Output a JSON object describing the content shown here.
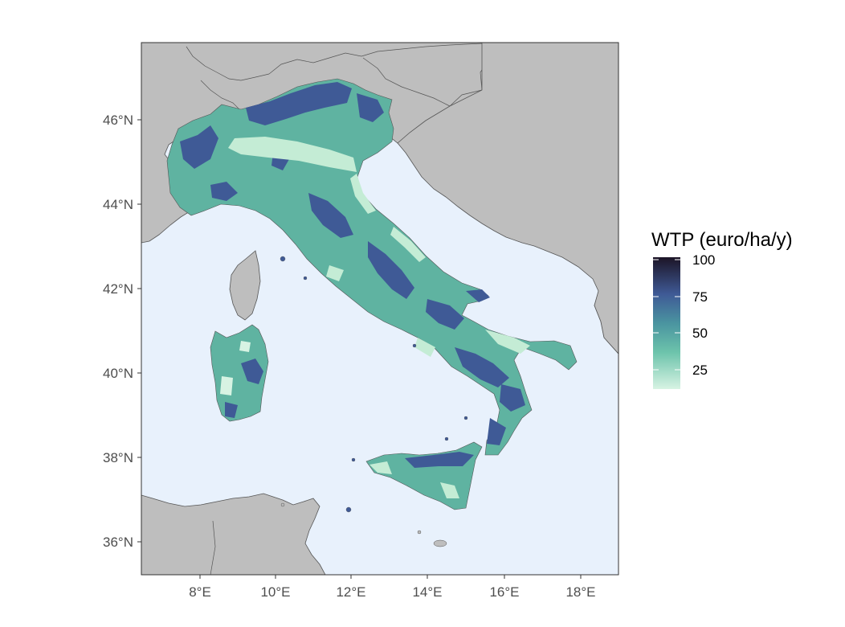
{
  "map": {
    "colors": {
      "sea": "#e8f1fc",
      "land": "#bebebe",
      "border": "#555555",
      "low": "#d7f3e3",
      "mid": "#5fb3a1",
      "high": "#3f5a96",
      "max": "#1c1426"
    },
    "axes": {
      "x_ticks": [
        "8°E",
        "10°E",
        "12°E",
        "14°E",
        "16°E",
        "18°E"
      ],
      "y_ticks": [
        "46°N",
        "44°N",
        "42°N",
        "40°N",
        "38°N",
        "36°N"
      ]
    },
    "legend": {
      "title": "WTP (euro/ha/y)",
      "min": 10,
      "max": 100,
      "labels": [
        "100",
        "75",
        "50",
        "25"
      ]
    }
  }
}
